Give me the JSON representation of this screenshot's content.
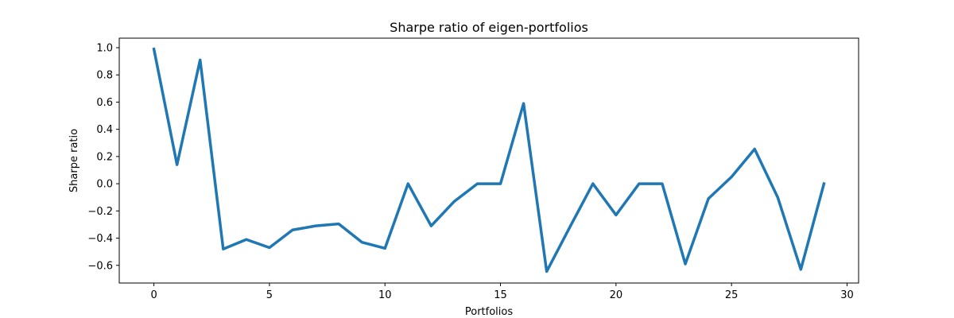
{
  "chart_data": {
    "type": "line",
    "title": "Sharpe ratio of eigen-portfolios",
    "xlabel": "Portfolios",
    "ylabel": "Sharpe ratio",
    "xlim": [
      -1.5,
      30.5
    ],
    "ylim": [
      -0.73,
      1.07
    ],
    "xticks": [
      0,
      5,
      10,
      15,
      20,
      25,
      30
    ],
    "xtick_labels": [
      "0",
      "5",
      "10",
      "15",
      "20",
      "25",
      "30"
    ],
    "yticks": [
      1.0,
      0.8,
      0.6,
      0.4,
      0.2,
      0.0,
      -0.2,
      -0.4,
      -0.6
    ],
    "ytick_labels": [
      "1.0",
      "0.8",
      "0.6",
      "0.4",
      "0.2",
      "0.0",
      "−0.2",
      "−0.4",
      "−0.6"
    ],
    "grid": false,
    "legend": "none",
    "series": [
      {
        "color": "#1f77b4",
        "x": [
          0,
          1,
          2,
          3,
          4,
          5,
          6,
          7,
          8,
          9,
          10,
          11,
          12,
          13,
          14,
          15,
          16,
          17,
          18,
          19,
          20,
          21,
          22,
          23,
          24,
          25,
          26,
          27,
          28,
          29
        ],
        "y": [
          0.99,
          0.14,
          0.91,
          -0.48,
          -0.41,
          -0.47,
          -0.34,
          -0.31,
          -0.295,
          -0.43,
          -0.475,
          0.0,
          -0.31,
          -0.13,
          0.0,
          0.0,
          0.59,
          -0.645,
          -0.32,
          0.0,
          -0.23,
          0.0,
          0.0,
          -0.59,
          -0.11,
          0.05,
          0.255,
          -0.1,
          -0.63,
          0.0
        ]
      }
    ]
  }
}
